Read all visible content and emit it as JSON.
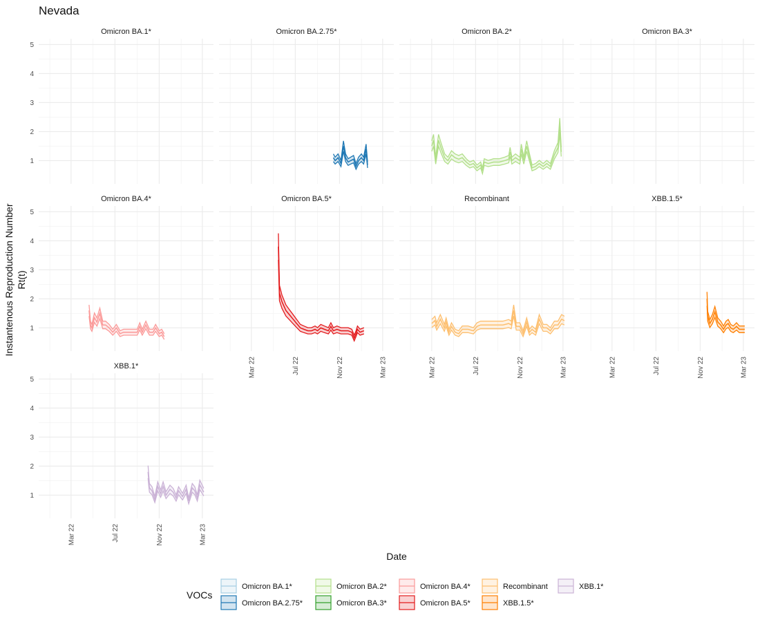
{
  "chart_data": {
    "type": "line",
    "title": "Nevada",
    "xlabel": "Date",
    "ylabel_line1": "Instantenous Reproduction Number",
    "ylabel_line2": "Rt(t)",
    "ylim": [
      0.2,
      5.2
    ],
    "y_ticks": [
      1,
      2,
      3,
      4,
      5
    ],
    "x_range": [
      "2021-12-01",
      "2023-04-01"
    ],
    "x_ticks": [
      {
        "date": "2022-03-01",
        "label": "Mar 22"
      },
      {
        "date": "2022-07-01",
        "label": "Jul 22"
      },
      {
        "date": "2022-11-01",
        "label": "Nov 22"
      },
      {
        "date": "2023-03-01",
        "label": "Mar 23"
      }
    ],
    "grid": true,
    "facets": [
      {
        "name": "Omicron BA.1*",
        "color": "#a6cee3",
        "series": []
      },
      {
        "name": "Omicron BA.2.75*",
        "color": "#1f78b4",
        "series": [
          [
            "2022-10-15",
            1.1
          ],
          [
            "2022-10-20",
            1.0
          ],
          [
            "2022-10-28",
            1.1
          ],
          [
            "2022-11-05",
            0.9
          ],
          [
            "2022-11-12",
            1.5
          ],
          [
            "2022-11-18",
            1.1
          ],
          [
            "2022-11-25",
            0.95
          ],
          [
            "2022-12-02",
            1.0
          ],
          [
            "2022-12-10",
            1.05
          ],
          [
            "2022-12-17",
            0.8
          ],
          [
            "2022-12-24",
            1.0
          ],
          [
            "2023-01-01",
            1.1
          ],
          [
            "2023-01-07",
            1.0
          ],
          [
            "2023-01-14",
            1.4
          ],
          [
            "2023-01-18",
            0.85
          ]
        ]
      },
      {
        "name": "Omicron BA.2*",
        "color": "#b2df8a",
        "series": [
          [
            "2022-03-01",
            1.5
          ],
          [
            "2022-03-06",
            1.7
          ],
          [
            "2022-03-12",
            1.0
          ],
          [
            "2022-03-20",
            1.7
          ],
          [
            "2022-03-28",
            1.4
          ],
          [
            "2022-04-06",
            1.1
          ],
          [
            "2022-04-15",
            1.0
          ],
          [
            "2022-04-25",
            1.2
          ],
          [
            "2022-05-05",
            1.1
          ],
          [
            "2022-05-15",
            1.05
          ],
          [
            "2022-05-25",
            1.1
          ],
          [
            "2022-06-05",
            0.95
          ],
          [
            "2022-06-15",
            0.85
          ],
          [
            "2022-06-25",
            0.9
          ],
          [
            "2022-07-05",
            0.75
          ],
          [
            "2022-07-15",
            0.85
          ],
          [
            "2022-07-20",
            0.65
          ],
          [
            "2022-07-25",
            0.95
          ],
          [
            "2022-08-05",
            0.9
          ],
          [
            "2022-08-20",
            0.95
          ],
          [
            "2022-09-05",
            0.95
          ],
          [
            "2022-09-20",
            1.0
          ],
          [
            "2022-10-01",
            1.05
          ],
          [
            "2022-10-05",
            1.3
          ],
          [
            "2022-10-10",
            1.0
          ],
          [
            "2022-10-20",
            1.1
          ],
          [
            "2022-11-01",
            1.0
          ],
          [
            "2022-11-05",
            1.4
          ],
          [
            "2022-11-12",
            1.0
          ],
          [
            "2022-11-20",
            1.5
          ],
          [
            "2022-11-28",
            1.1
          ],
          [
            "2022-12-05",
            0.75
          ],
          [
            "2022-12-15",
            0.8
          ],
          [
            "2022-12-25",
            0.9
          ],
          [
            "2023-01-05",
            0.8
          ],
          [
            "2023-01-15",
            0.9
          ],
          [
            "2023-01-25",
            0.8
          ],
          [
            "2023-02-05",
            1.2
          ],
          [
            "2023-02-15",
            1.45
          ],
          [
            "2023-02-20",
            2.2
          ],
          [
            "2023-02-24",
            1.3
          ]
        ]
      },
      {
        "name": "Omicron BA.3*",
        "color": "#33a02c",
        "series": []
      },
      {
        "name": "Omicron BA.4*",
        "color": "#fb9a99",
        "series": [
          [
            "2022-04-20",
            1.6
          ],
          [
            "2022-04-24",
            1.1
          ],
          [
            "2022-04-28",
            1.0
          ],
          [
            "2022-05-05",
            1.35
          ],
          [
            "2022-05-12",
            1.2
          ],
          [
            "2022-05-20",
            1.5
          ],
          [
            "2022-05-28",
            1.1
          ],
          [
            "2022-06-05",
            1.1
          ],
          [
            "2022-06-15",
            1.0
          ],
          [
            "2022-06-25",
            0.85
          ],
          [
            "2022-07-05",
            1.0
          ],
          [
            "2022-07-15",
            0.8
          ],
          [
            "2022-07-25",
            0.85
          ],
          [
            "2022-08-05",
            0.85
          ],
          [
            "2022-08-20",
            0.85
          ],
          [
            "2022-09-01",
            0.85
          ],
          [
            "2022-09-08",
            1.05
          ],
          [
            "2022-09-15",
            0.85
          ],
          [
            "2022-09-25",
            1.1
          ],
          [
            "2022-10-05",
            0.85
          ],
          [
            "2022-10-15",
            0.85
          ],
          [
            "2022-10-22",
            1.0
          ],
          [
            "2022-11-01",
            0.8
          ],
          [
            "2022-11-08",
            0.85
          ],
          [
            "2022-11-15",
            0.7
          ]
        ]
      },
      {
        "name": "Omicron BA.5*",
        "color": "#e31a1c",
        "series": [
          [
            "2022-05-15",
            3.8
          ],
          [
            "2022-05-18",
            2.2
          ],
          [
            "2022-05-25",
            1.9
          ],
          [
            "2022-06-05",
            1.6
          ],
          [
            "2022-06-15",
            1.45
          ],
          [
            "2022-06-25",
            1.3
          ],
          [
            "2022-07-05",
            1.15
          ],
          [
            "2022-07-15",
            1.0
          ],
          [
            "2022-07-25",
            0.95
          ],
          [
            "2022-08-05",
            0.9
          ],
          [
            "2022-08-15",
            0.9
          ],
          [
            "2022-08-25",
            0.95
          ],
          [
            "2022-09-01",
            0.9
          ],
          [
            "2022-09-10",
            1.0
          ],
          [
            "2022-09-20",
            0.95
          ],
          [
            "2022-10-01",
            0.9
          ],
          [
            "2022-10-08",
            1.05
          ],
          [
            "2022-10-15",
            0.9
          ],
          [
            "2022-10-25",
            0.95
          ],
          [
            "2022-11-05",
            0.9
          ],
          [
            "2022-11-15",
            0.9
          ],
          [
            "2022-11-25",
            0.9
          ],
          [
            "2022-12-05",
            0.85
          ],
          [
            "2022-12-12",
            0.65
          ],
          [
            "2022-12-17",
            0.8
          ],
          [
            "2022-12-21",
            0.95
          ],
          [
            "2022-12-28",
            0.85
          ],
          [
            "2023-01-08",
            0.9
          ]
        ]
      },
      {
        "name": "Recombinant",
        "color": "#fdbf6f",
        "series": [
          [
            "2022-03-01",
            1.15
          ],
          [
            "2022-03-10",
            1.25
          ],
          [
            "2022-03-15",
            1.05
          ],
          [
            "2022-03-25",
            1.3
          ],
          [
            "2022-04-05",
            1.0
          ],
          [
            "2022-04-10",
            1.2
          ],
          [
            "2022-04-18",
            0.85
          ],
          [
            "2022-04-25",
            1.05
          ],
          [
            "2022-05-05",
            0.85
          ],
          [
            "2022-05-15",
            0.8
          ],
          [
            "2022-05-25",
            0.95
          ],
          [
            "2022-06-10",
            0.95
          ],
          [
            "2022-06-25",
            0.9
          ],
          [
            "2022-07-05",
            1.05
          ],
          [
            "2022-07-15",
            1.1
          ],
          [
            "2022-08-05",
            1.1
          ],
          [
            "2022-08-25",
            1.1
          ],
          [
            "2022-09-15",
            1.1
          ],
          [
            "2022-10-01",
            1.15
          ],
          [
            "2022-10-08",
            1.1
          ],
          [
            "2022-10-15",
            1.6
          ],
          [
            "2022-10-22",
            1.05
          ],
          [
            "2022-11-01",
            1.05
          ],
          [
            "2022-11-10",
            0.8
          ],
          [
            "2022-11-20",
            1.2
          ],
          [
            "2022-11-28",
            0.85
          ],
          [
            "2022-12-05",
            0.95
          ],
          [
            "2022-12-15",
            0.85
          ],
          [
            "2022-12-25",
            1.3
          ],
          [
            "2023-01-05",
            1.0
          ],
          [
            "2023-01-15",
            1.0
          ],
          [
            "2023-01-25",
            0.9
          ],
          [
            "2023-02-05",
            1.1
          ],
          [
            "2023-02-15",
            1.1
          ],
          [
            "2023-02-25",
            1.3
          ],
          [
            "2023-03-05",
            1.25
          ]
        ]
      },
      {
        "name": "XBB.1.5*",
        "color": "#ff7f00",
        "series": [
          [
            "2022-11-20",
            2.0
          ],
          [
            "2022-11-22",
            1.4
          ],
          [
            "2022-11-28",
            1.15
          ],
          [
            "2022-12-05",
            1.3
          ],
          [
            "2022-12-12",
            1.55
          ],
          [
            "2022-12-20",
            1.2
          ],
          [
            "2022-12-28",
            1.1
          ],
          [
            "2023-01-05",
            0.95
          ],
          [
            "2023-01-12",
            1.1
          ],
          [
            "2023-01-18",
            1.15
          ],
          [
            "2023-01-25",
            1.0
          ],
          [
            "2023-02-01",
            0.95
          ],
          [
            "2023-02-10",
            1.05
          ],
          [
            "2023-02-18",
            0.95
          ],
          [
            "2023-02-25",
            0.95
          ],
          [
            "2023-03-05",
            0.95
          ]
        ]
      },
      {
        "name": "XBB.1*",
        "color": "#cab2d6",
        "series": [
          [
            "2022-10-01",
            1.8
          ],
          [
            "2022-10-03",
            1.5
          ],
          [
            "2022-10-05",
            1.25
          ],
          [
            "2022-10-12",
            1.15
          ],
          [
            "2022-10-20",
            0.85
          ],
          [
            "2022-10-28",
            1.3
          ],
          [
            "2022-11-05",
            1.05
          ],
          [
            "2022-11-12",
            1.3
          ],
          [
            "2022-11-20",
            1.0
          ],
          [
            "2022-12-01",
            1.2
          ],
          [
            "2022-12-10",
            1.1
          ],
          [
            "2022-12-18",
            0.9
          ],
          [
            "2022-12-25",
            1.15
          ],
          [
            "2023-01-05",
            0.95
          ],
          [
            "2023-01-15",
            1.2
          ],
          [
            "2023-01-22",
            0.8
          ],
          [
            "2023-02-01",
            1.25
          ],
          [
            "2023-02-08",
            1.15
          ],
          [
            "2023-02-15",
            0.9
          ],
          [
            "2023-02-22",
            1.35
          ],
          [
            "2023-03-05",
            1.1
          ]
        ]
      }
    ]
  },
  "legend": {
    "title": "VOCs",
    "items": [
      {
        "label": "Omicron BA.1*",
        "color": "#a6cee3"
      },
      {
        "label": "Omicron BA.2.75*",
        "color": "#1f78b4"
      },
      {
        "label": "Omicron BA.2*",
        "color": "#b2df8a"
      },
      {
        "label": "Omicron BA.3*",
        "color": "#33a02c"
      },
      {
        "label": "Omicron BA.4*",
        "color": "#fb9a99"
      },
      {
        "label": "Omicron BA.5*",
        "color": "#e31a1c"
      },
      {
        "label": "Recombinant",
        "color": "#fdbf6f"
      },
      {
        "label": "XBB.1.5*",
        "color": "#ff7f00"
      },
      {
        "label": "XBB.1*",
        "color": "#cab2d6"
      }
    ]
  }
}
